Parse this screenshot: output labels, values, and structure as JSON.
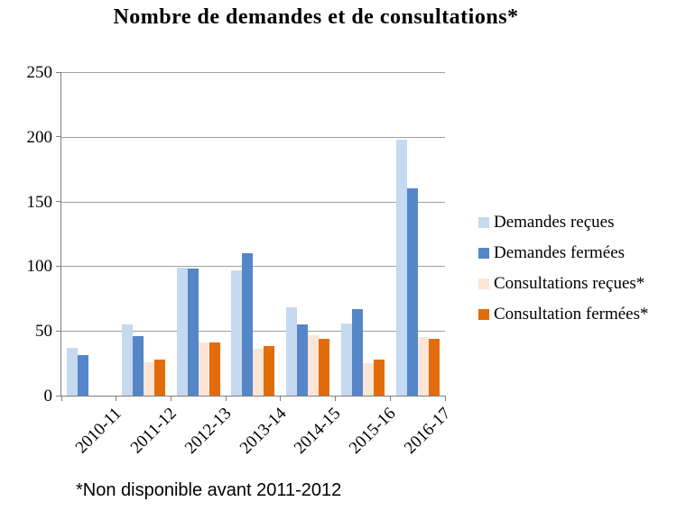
{
  "chart_data": {
    "type": "bar",
    "title": "Nombre de demandes et de consultations*",
    "footnote": "*Non disponible avant 2011-2012",
    "categories": [
      "2010-11",
      "2011-12",
      "2012-13",
      "2013-14",
      "2014-15",
      "2015-16",
      "2016-17"
    ],
    "series": [
      {
        "name": "Demandes reçues",
        "color": "#C5D9F1",
        "values": [
          37,
          55,
          99,
          97,
          68,
          56,
          198
        ]
      },
      {
        "name": "Demandes fermées",
        "color": "#5586C8",
        "values": [
          31,
          46,
          98,
          110,
          55,
          67,
          160
        ]
      },
      {
        "name": "Consultations reçues*",
        "color": "#FBE5D6",
        "values": [
          null,
          26,
          41,
          36,
          47,
          25,
          45
        ]
      },
      {
        "name": "Consultation fermées*",
        "color": "#E36C0A",
        "values": [
          null,
          28,
          41,
          38,
          44,
          28,
          44
        ]
      }
    ],
    "ylim": [
      0,
      250
    ],
    "yticks": [
      0,
      50,
      100,
      150,
      200,
      250
    ],
    "grid": true,
    "legend_position": "right",
    "axis_color": "#7F7F7F",
    "gridline_color": "#A0A0A0"
  }
}
